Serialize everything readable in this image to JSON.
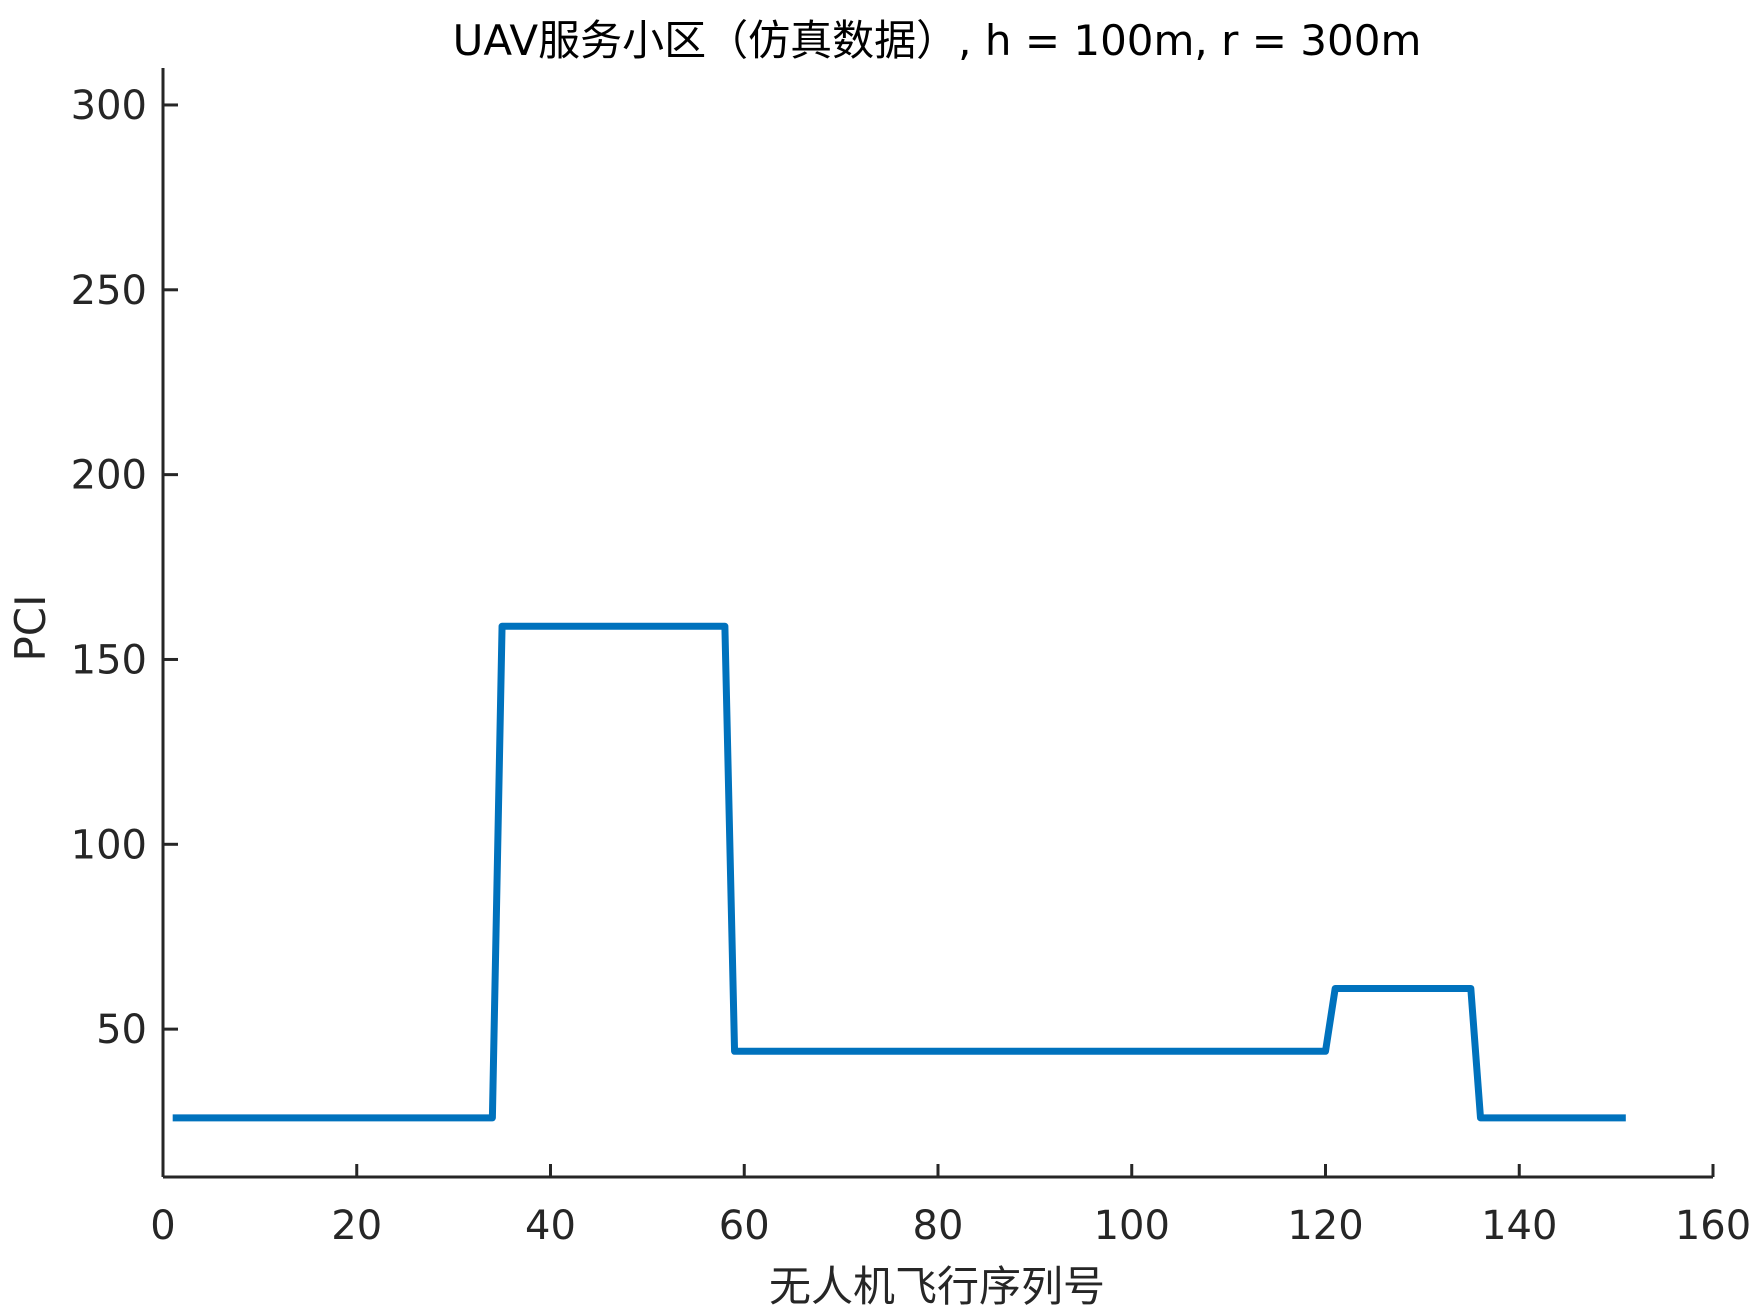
{
  "chart_data": {
    "type": "line",
    "title": "UAV服务小区（仿真数据）, h = 100m, r = 300m",
    "xlabel": "无人机飞行序列号",
    "ylabel": "PCI",
    "xlim": [
      0,
      160
    ],
    "ylim": [
      10,
      310
    ],
    "xticks": [
      0,
      20,
      40,
      60,
      80,
      100,
      120,
      140,
      160
    ],
    "yticks": [
      50,
      100,
      150,
      200,
      250,
      300
    ],
    "grid": false,
    "series": [
      {
        "color": "#0072BD",
        "x": [
          1,
          34,
          35,
          58,
          59,
          120,
          121,
          135,
          136,
          151
        ],
        "y": [
          26,
          26,
          159,
          159,
          44,
          44,
          61,
          61,
          26,
          26
        ]
      }
    ]
  }
}
